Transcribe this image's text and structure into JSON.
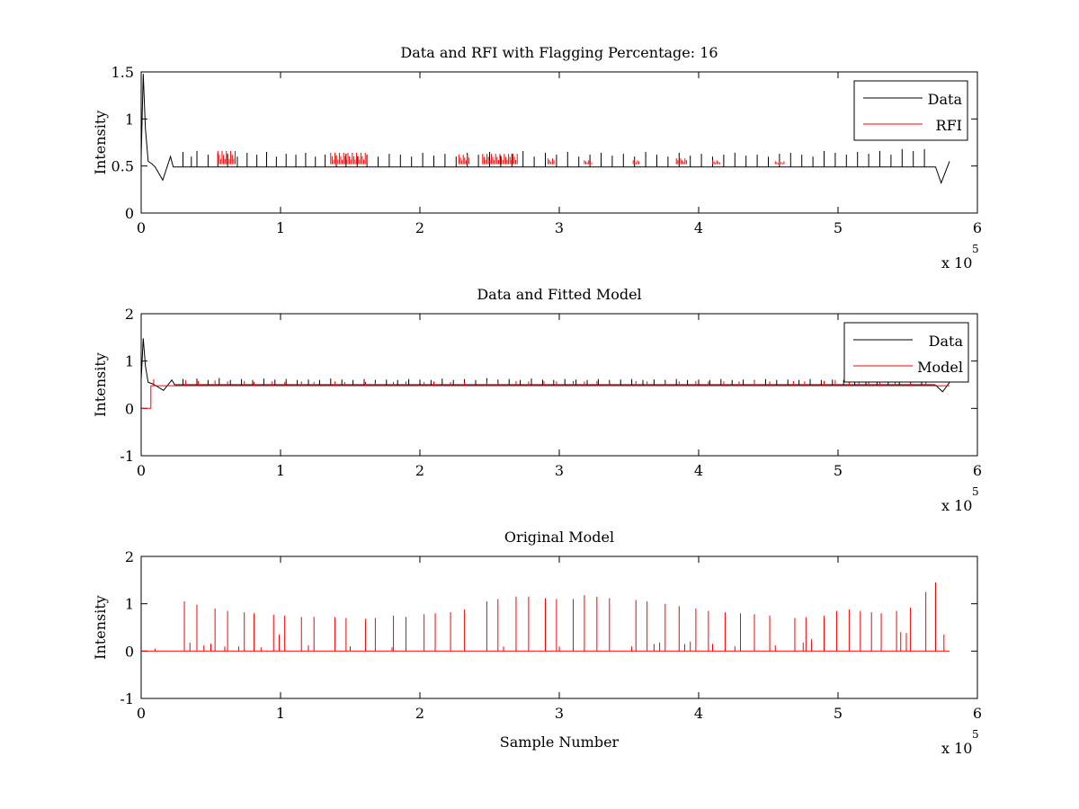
{
  "figure": {
    "background": "#ffffff",
    "axis_color": "#000000"
  },
  "chart_data": [
    {
      "type": "line",
      "title": "Data and RFI with Flagging Percentage: 16",
      "xlabel": "",
      "ylabel": "Intensity",
      "xlim": [
        0,
        600000
      ],
      "ylim": [
        0,
        1.5
      ],
      "xticks": [
        "0",
        "1",
        "2",
        "3",
        "4",
        "5",
        "6"
      ],
      "yticks": [
        "0",
        "0.5",
        "1",
        "1.5"
      ],
      "x_exponent": {
        "prefix": "x 10",
        "power": "5"
      },
      "legend": {
        "position": "top-right",
        "entries": [
          "Data",
          "RFI"
        ]
      },
      "series": [
        {
          "name": "Data",
          "color": "#000000",
          "baseline": 0.49,
          "x_end": 580000,
          "features": {
            "initial_peak": {
              "x": [
                0,
                1500,
                3000,
                5000,
                8000
              ],
              "y": [
                0.6,
                1.48,
                0.9,
                0.55,
                0.52
              ]
            },
            "early_dip": {
              "x": [
                10000,
                15500,
                21000
              ],
              "y": [
                0.49,
                0.35,
                0.6
              ]
            },
            "late_dip": {
              "x": [
                570000,
                574000,
                580000
              ],
              "y": [
                0.49,
                0.32,
                0.55
              ]
            }
          },
          "spikes_x": [
            30000,
            36000,
            40000,
            48000,
            55000,
            62000,
            69000,
            76000,
            83000,
            90000,
            97000,
            104000,
            111000,
            118000,
            125000,
            132000,
            140000,
            147000,
            155000,
            162000,
            170000,
            178000,
            186000,
            194000,
            202000,
            210000,
            218000,
            226000,
            234000,
            242000,
            250000,
            258000,
            266000,
            274000,
            282000,
            290000,
            298000,
            306000,
            314000,
            322000,
            330000,
            338000,
            346000,
            354000,
            362000,
            370000,
            378000,
            386000,
            394000,
            402000,
            410000,
            418000,
            426000,
            434000,
            442000,
            450000,
            458000,
            466000,
            474000,
            482000,
            490000,
            498000,
            506000,
            514000,
            522000,
            530000,
            538000,
            546000,
            554000,
            562000
          ],
          "spikes_y": [
            0.65,
            0.6,
            0.66,
            0.62,
            0.64,
            0.63,
            0.6,
            0.64,
            0.62,
            0.65,
            0.6,
            0.63,
            0.62,
            0.64,
            0.6,
            0.62,
            0.61,
            0.63,
            0.6,
            0.62,
            0.6,
            0.63,
            0.62,
            0.6,
            0.64,
            0.61,
            0.63,
            0.6,
            0.64,
            0.62,
            0.65,
            0.61,
            0.63,
            0.66,
            0.6,
            0.64,
            0.62,
            0.65,
            0.6,
            0.62,
            0.64,
            0.61,
            0.63,
            0.6,
            0.65,
            0.62,
            0.6,
            0.64,
            0.61,
            0.63,
            0.6,
            0.62,
            0.64,
            0.61,
            0.62,
            0.6,
            0.63,
            0.64,
            0.62,
            0.6,
            0.66,
            0.64,
            0.62,
            0.65,
            0.63,
            0.66,
            0.62,
            0.68,
            0.66,
            0.68
          ]
        },
        {
          "name": "RFI",
          "color": "#ff0000",
          "segments": [
            {
              "x": [
                55000,
                68000
              ],
              "y": [
                0.52,
                0.66
              ]
            },
            {
              "x": [
                136000,
                162000
              ],
              "y": [
                0.52,
                0.64
              ]
            },
            {
              "x": [
                228000,
                236000
              ],
              "y": [
                0.52,
                0.62
              ]
            },
            {
              "x": [
                245000,
                270000
              ],
              "y": [
                0.52,
                0.63
              ]
            },
            {
              "x": [
                292000,
                297000
              ],
              "y": [
                0.52,
                0.58
              ]
            },
            {
              "x": [
                318000,
                324000
              ],
              "y": [
                0.52,
                0.56
              ]
            },
            {
              "x": [
                353000,
                358000
              ],
              "y": [
                0.52,
                0.56
              ]
            },
            {
              "x": [
                384000,
                392000
              ],
              "y": [
                0.52,
                0.58
              ]
            },
            {
              "x": [
                410000,
                416000
              ],
              "y": [
                0.52,
                0.56
              ]
            },
            {
              "x": [
                455000,
                462000
              ],
              "y": [
                0.52,
                0.55
              ]
            }
          ]
        }
      ]
    },
    {
      "type": "line",
      "title": "Data and Fitted Model",
      "xlabel": "",
      "ylabel": "Intensity",
      "xlim": [
        0,
        600000
      ],
      "ylim": [
        -1,
        2
      ],
      "xticks": [
        "0",
        "1",
        "2",
        "3",
        "4",
        "5",
        "6"
      ],
      "yticks": [
        "-1",
        "0",
        "1",
        "2"
      ],
      "x_exponent": {
        "prefix": "x 10",
        "power": "5"
      },
      "legend": {
        "position": "top-right",
        "entries": [
          "Data",
          "Model"
        ]
      },
      "series": [
        {
          "name": "Data",
          "color": "#000000",
          "baseline": 0.5,
          "x_end": 580000,
          "features": {
            "initial_peak": {
              "x": [
                0,
                1500,
                3000,
                5000,
                8000
              ],
              "y": [
                0.6,
                1.48,
                0.9,
                0.55,
                0.52
              ]
            },
            "early_dip": {
              "x": [
                10000,
                16000,
                22000
              ],
              "y": [
                0.49,
                0.38,
                0.6
              ]
            },
            "late_dip": {
              "x": [
                570000,
                575000,
                580000
              ],
              "y": [
                0.49,
                0.35,
                0.55
              ]
            }
          },
          "spikes_x": [
            30000,
            40000,
            48000,
            56000,
            64000,
            72000,
            80000,
            88000,
            96000,
            104000,
            112000,
            120000,
            128000,
            136000,
            144000,
            152000,
            160000,
            168000,
            176000,
            184000,
            192000,
            200000,
            208000,
            216000,
            224000,
            232000,
            240000,
            248000,
            256000,
            264000,
            272000,
            280000,
            288000,
            296000,
            304000,
            312000,
            320000,
            328000,
            336000,
            344000,
            352000,
            360000,
            368000,
            376000,
            384000,
            392000,
            400000,
            408000,
            416000,
            424000,
            432000,
            440000,
            448000,
            456000,
            464000,
            472000,
            480000,
            488000,
            496000,
            504000,
            512000,
            520000,
            528000,
            536000,
            544000,
            552000,
            560000
          ],
          "spikes_y": [
            0.62,
            0.63,
            0.6,
            0.64,
            0.6,
            0.62,
            0.6,
            0.63,
            0.61,
            0.62,
            0.6,
            0.61,
            0.6,
            0.63,
            0.61,
            0.6,
            0.62,
            0.6,
            0.61,
            0.6,
            0.62,
            0.61,
            0.6,
            0.63,
            0.6,
            0.62,
            0.6,
            0.64,
            0.61,
            0.62,
            0.6,
            0.63,
            0.61,
            0.6,
            0.62,
            0.61,
            0.6,
            0.62,
            0.6,
            0.61,
            0.62,
            0.6,
            0.61,
            0.6,
            0.62,
            0.6,
            0.61,
            0.6,
            0.62,
            0.6,
            0.61,
            0.6,
            0.62,
            0.6,
            0.61,
            0.6,
            0.62,
            0.6,
            0.61,
            0.6,
            0.62,
            0.6,
            0.61,
            0.6,
            0.62,
            0.6,
            0.61
          ]
        },
        {
          "name": "Model",
          "color": "#ff0000",
          "step": {
            "x": [
              0,
              7000,
              7000,
              580000
            ],
            "y": [
              0,
              0,
              0.48,
              0.48
            ]
          },
          "spikes_x": [
            9000,
            32000,
            41000,
            53000,
            62000,
            74000,
            81000,
            94000,
            103000,
            115000,
            124000,
            139000,
            146000,
            161000,
            168000,
            181000,
            190000,
            203000,
            210000,
            222000,
            232000,
            248000,
            256000,
            269000,
            278000,
            289000,
            298000,
            310000,
            318000,
            327000,
            336000,
            355000,
            363000,
            376000,
            386000,
            398000,
            407000,
            418000,
            429000,
            440000,
            451000,
            468000,
            476000,
            490000,
            498000,
            508000,
            515000,
            522000,
            530000,
            541000,
            552000,
            563000
          ],
          "spikes_y": [
            0.62,
            0.6,
            0.58,
            0.59,
            0.57,
            0.58,
            0.56,
            0.57,
            0.56,
            0.57,
            0.56,
            0.57,
            0.56,
            0.56,
            0.57,
            0.56,
            0.57,
            0.56,
            0.57,
            0.56,
            0.57,
            0.58,
            0.57,
            0.58,
            0.57,
            0.58,
            0.57,
            0.58,
            0.57,
            0.58,
            0.57,
            0.58,
            0.57,
            0.58,
            0.57,
            0.58,
            0.57,
            0.57,
            0.57,
            0.58,
            0.57,
            0.58,
            0.57,
            0.58,
            0.6,
            0.58,
            0.6,
            0.58,
            0.59,
            0.58,
            0.6,
            0.6
          ]
        }
      ]
    },
    {
      "type": "line",
      "title": "Original Model",
      "xlabel": "Sample Number",
      "ylabel": "Intensity",
      "xlim": [
        0,
        600000
      ],
      "ylim": [
        -1,
        2
      ],
      "xticks": [
        "0",
        "1",
        "2",
        "3",
        "4",
        "5",
        "6"
      ],
      "yticks": [
        "-1",
        "0",
        "1",
        "2"
      ],
      "x_exponent": {
        "prefix": "x 10",
        "power": "5"
      },
      "series": [
        {
          "color": "#ff0000",
          "baseline": 0,
          "x_start": 0,
          "x_end": 580000,
          "spikes_x": [
            10000,
            31000,
            40000,
            53000,
            62000,
            74000,
            81000,
            95000,
            103000,
            115000,
            124000,
            139000,
            147000,
            161000,
            168000,
            181000,
            190000,
            203000,
            211000,
            222000,
            232000,
            248000,
            256000,
            269000,
            278000,
            290000,
            298000,
            310000,
            318000,
            327000,
            336000,
            355000,
            363000,
            376000,
            386000,
            398000,
            407000,
            419000,
            430000,
            440000,
            451000,
            469000,
            477000,
            490000,
            499000,
            508000,
            516000,
            524000,
            531000,
            542000,
            552000,
            563000,
            570000
          ],
          "spikes_y": [
            0.05,
            1.05,
            0.98,
            0.9,
            0.85,
            0.82,
            0.8,
            0.77,
            0.75,
            0.72,
            0.72,
            0.72,
            0.7,
            0.68,
            0.7,
            0.75,
            0.72,
            0.78,
            0.8,
            0.82,
            0.88,
            1.05,
            1.1,
            1.15,
            1.15,
            1.12,
            1.1,
            1.1,
            1.18,
            1.15,
            1.12,
            1.08,
            1.05,
            1.0,
            0.95,
            0.9,
            0.85,
            0.82,
            0.8,
            0.78,
            0.75,
            0.7,
            0.72,
            0.75,
            0.85,
            0.88,
            0.85,
            0.82,
            0.8,
            0.85,
            0.92,
            1.25,
            1.45
          ],
          "small_spikes_x": [
            35000,
            45000,
            50000,
            60000,
            70000,
            86000,
            99000,
            120000,
            150000,
            180000,
            260000,
            300000,
            352000,
            368000,
            372000,
            390000,
            394000,
            410000,
            426000,
            455000,
            475000,
            481000,
            545000,
            549000,
            576000
          ],
          "small_spikes_y": [
            0.18,
            0.12,
            0.15,
            0.1,
            0.1,
            0.08,
            0.35,
            0.12,
            0.1,
            0.08,
            0.1,
            0.1,
            0.1,
            0.15,
            0.18,
            0.15,
            0.2,
            0.15,
            0.1,
            0.12,
            0.18,
            0.25,
            0.4,
            0.38,
            0.35
          ]
        }
      ]
    }
  ]
}
